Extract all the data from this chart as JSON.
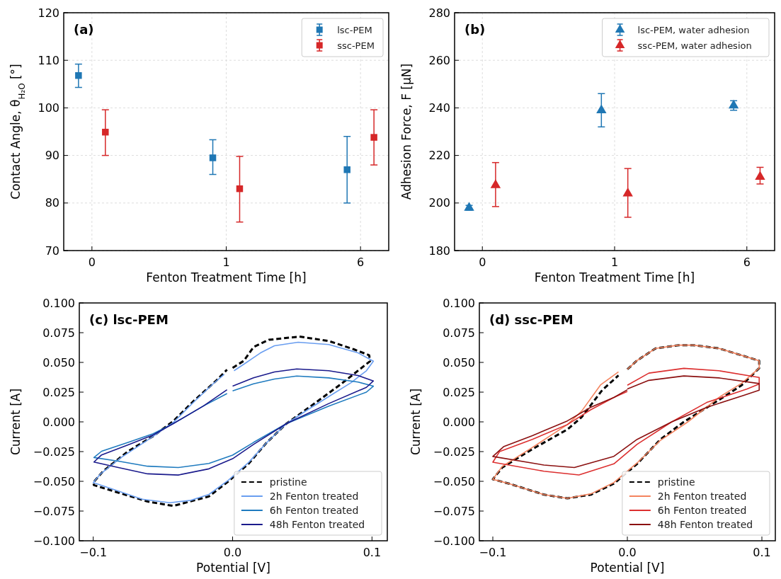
{
  "chart_data": [
    {
      "type": "scatter",
      "title": "(a)",
      "xlabel": "Fenton Treatment Time [h]",
      "ylabel": "Contact Angle, θ$_{H₂O}$ [°]",
      "categories": [
        "0",
        "1",
        "6"
      ],
      "ylim": [
        70,
        120
      ],
      "yticks": [
        70,
        80,
        90,
        100,
        110,
        120
      ],
      "grid": true,
      "legend": "top right",
      "marker": "square",
      "series": [
        {
          "name": "lsc-PEM",
          "color": "#1f77b4",
          "values": [
            106.8,
            89.5,
            87
          ],
          "errors": [
            [
              104.3,
              109.2
            ],
            [
              86,
              93.3
            ],
            [
              80,
              94
            ]
          ]
        },
        {
          "name": "ssc-PEM",
          "color": "#d62728",
          "values": [
            94.9,
            83,
            93.8
          ],
          "errors": [
            [
              90,
              99.6
            ],
            [
              76,
              89.8
            ],
            [
              88,
              99.6
            ]
          ]
        }
      ]
    },
    {
      "type": "scatter",
      "title": "(b)",
      "xlabel": "Fenton Treatment Time [h]",
      "ylabel": "Adhesion Force, F [μN]",
      "categories": [
        "0",
        "1",
        "6"
      ],
      "ylim": [
        180,
        280
      ],
      "yticks": [
        180,
        200,
        220,
        240,
        260,
        280
      ],
      "grid": true,
      "legend": "top right",
      "marker": "triangle",
      "series": [
        {
          "name": "lsc-PEM, water adhesion",
          "color": "#1f77b4",
          "values": [
            198,
            239,
            241
          ],
          "errors": [
            [
              197,
              199
            ],
            [
              232,
              246
            ],
            [
              239,
              243
            ]
          ]
        },
        {
          "name": "ssc-PEM, water adhesion",
          "color": "#d62728",
          "values": [
            207.5,
            204,
            211
          ],
          "errors": [
            [
              198.5,
              217
            ],
            [
              194,
              214.5
            ],
            [
              208,
              215
            ]
          ]
        }
      ]
    },
    {
      "type": "line",
      "title": "(c) lsc-PEM",
      "xlabel": "Potential [V]",
      "ylabel": "Current [A]",
      "xlim": [
        -0.11,
        0.111
      ],
      "xticks": [
        {
          "value": -0.1,
          "label": "−0.1"
        },
        {
          "value": 0,
          "label": "0.0"
        },
        {
          "value": 0.1,
          "label": "0.1"
        }
      ],
      "ylim": [
        -0.1,
        0.1
      ],
      "yticks": [
        {
          "value": -0.1,
          "label": "−0.100"
        },
        {
          "value": -0.075,
          "label": "−0.075"
        },
        {
          "value": -0.05,
          "label": "−0.050"
        },
        {
          "value": -0.025,
          "label": "−0.025"
        },
        {
          "value": 0,
          "label": "0.000"
        },
        {
          "value": 0.025,
          "label": "0.025"
        },
        {
          "value": 0.05,
          "label": "0.050"
        },
        {
          "value": 0.075,
          "label": "0.075"
        },
        {
          "value": 0.1,
          "label": "0.100"
        }
      ],
      "legend": "bottom right",
      "series": [
        {
          "name": "pristine",
          "color": "#000000",
          "line_style": "dashed",
          "x": [
            0,
            0.008,
            0.015,
            0.026,
            0.048,
            0.069,
            0.087,
            0.098,
            0.0986,
            0.091,
            0.078,
            0.06,
            0.0386,
            0.024,
            0.0116,
            -0.003,
            -0.017,
            -0.0426,
            -0.061,
            -0.082,
            -0.0995,
            -0.1,
            -0.093,
            -0.075,
            -0.057,
            -0.0426,
            -0.028,
            -0.012,
            -0.004
          ],
          "values": [
            0.0454,
            0.0513,
            0.0629,
            0.069,
            0.0717,
            0.068,
            0.061,
            0.056,
            0.051,
            0.044,
            0.032,
            0.0165,
            -0.0015,
            -0.018,
            -0.035,
            -0.05,
            -0.0627,
            -0.0707,
            -0.067,
            -0.0595,
            -0.0532,
            -0.051,
            -0.0416,
            -0.0247,
            -0.012,
            0.0006,
            0.0175,
            0.0344,
            0.0439
          ]
        },
        {
          "name": "2h Fenton treated",
          "color": "#6a9ef0",
          "line_style": "solid",
          "x": [
            0.001,
            0.01,
            0.02,
            0.03,
            0.047,
            0.069,
            0.09,
            0.101,
            0.096,
            0.085,
            0.07,
            0.055,
            0.0386,
            0.024,
            0.0116,
            -0.003,
            -0.017,
            -0.03,
            -0.045,
            -0.065,
            -0.085,
            -0.1,
            -0.095,
            -0.08,
            -0.06,
            -0.0426,
            -0.028,
            -0.014,
            -0.006
          ],
          "values": [
            0.043,
            0.05,
            0.058,
            0.064,
            0.067,
            0.065,
            0.058,
            0.051,
            0.043,
            0.033,
            0.022,
            0.011,
            -0.0015,
            -0.018,
            -0.034,
            -0.049,
            -0.061,
            -0.066,
            -0.068,
            -0.065,
            -0.057,
            -0.051,
            -0.044,
            -0.03,
            -0.0145,
            -0.0005,
            0.0165,
            0.032,
            0.04
          ]
        },
        {
          "name": "6h Fenton treated",
          "color": "#1f7bbf",
          "line_style": "solid",
          "x": [
            0,
            0.015,
            0.03,
            0.046,
            0.069,
            0.09,
            0.101,
            0.096,
            0.069,
            0.0386,
            0.015,
            0,
            -0.017,
            -0.039,
            -0.061,
            -0.082,
            -0.0995,
            -0.094,
            -0.075,
            -0.057,
            -0.0426,
            -0.021,
            -0.004
          ],
          "values": [
            0.026,
            0.032,
            0.036,
            0.0385,
            0.037,
            0.0335,
            0.03,
            0.025,
            0.0133,
            -0.0015,
            -0.0173,
            -0.028,
            -0.035,
            -0.0384,
            -0.0373,
            -0.033,
            -0.03,
            -0.0247,
            -0.0173,
            -0.01,
            -0.0015,
            0.0133,
            0.0238
          ]
        },
        {
          "name": "48h Fenton treated",
          "color": "#1a1a8c",
          "line_style": "solid",
          "x": [
            0,
            0.015,
            0.03,
            0.046,
            0.069,
            0.09,
            0.101,
            0.096,
            0.069,
            0.0386,
            0.015,
            0,
            -0.017,
            -0.039,
            -0.061,
            -0.082,
            -0.0995,
            -0.094,
            -0.075,
            -0.057,
            -0.0426,
            -0.021,
            -0.004
          ],
          "values": [
            0.03,
            0.037,
            0.042,
            0.0445,
            0.043,
            0.039,
            0.0344,
            0.029,
            0.0154,
            -0.0015,
            -0.019,
            -0.031,
            -0.0395,
            -0.0447,
            -0.0437,
            -0.0384,
            -0.0338,
            -0.0278,
            -0.0194,
            -0.011,
            -0.0015,
            0.0133,
            0.027
          ]
        }
      ]
    },
    {
      "type": "line",
      "title": "(d) ssc-PEM",
      "xlabel": "Potential [V]",
      "ylabel": "Current [A]",
      "xlim": [
        -0.11,
        0.11
      ],
      "xticks": [
        {
          "value": -0.1,
          "label": "−0.1"
        },
        {
          "value": 0,
          "label": "0.0"
        },
        {
          "value": 0.1,
          "label": "0.1"
        }
      ],
      "ylim": [
        -0.1,
        0.1
      ],
      "yticks": [
        {
          "value": -0.1,
          "label": "−0.100"
        },
        {
          "value": -0.075,
          "label": "−0.075"
        },
        {
          "value": -0.05,
          "label": "−0.050"
        },
        {
          "value": -0.025,
          "label": "−0.025"
        },
        {
          "value": 0,
          "label": "0.000"
        },
        {
          "value": 0.025,
          "label": "0.025"
        },
        {
          "value": 0.05,
          "label": "0.050"
        },
        {
          "value": 0.075,
          "label": "0.075"
        },
        {
          "value": 0.1,
          "label": "0.100"
        }
      ],
      "legend": "bottom right",
      "series": [
        {
          "name": "pristine",
          "color": "#000000",
          "line_style": "dashed",
          "x": [
            0,
            0.007,
            0.021,
            0.038,
            0.049,
            0.068,
            0.092,
            0.098,
            0.098,
            0.085,
            0.068,
            0.042,
            0.0246,
            0.0073,
            -0.01,
            -0.027,
            -0.0446,
            -0.062,
            -0.088,
            -0.1,
            -0.093,
            -0.0706,
            -0.0446,
            -0.034,
            -0.0187,
            -0.0066
          ],
          "values": [
            0.0442,
            0.0514,
            0.0618,
            0.0645,
            0.0645,
            0.0618,
            0.0535,
            0.0514,
            0.0452,
            0.0308,
            0.0184,
            0,
            -0.0147,
            -0.0353,
            -0.0519,
            -0.0612,
            -0.0643,
            -0.0612,
            -0.0519,
            -0.0483,
            -0.0384,
            -0.0229,
            -0.0064,
            0.0039,
            0.0267,
            0.039
          ]
        },
        {
          "name": "2h Fenton treated",
          "color": "#f4845f",
          "line_style": "solid",
          "x": [
            0,
            0.007,
            0.021,
            0.038,
            0.049,
            0.068,
            0.092,
            0.098,
            0.098,
            0.085,
            0.068,
            0.045,
            0.0246,
            0.0073,
            -0.01,
            -0.027,
            -0.0446,
            -0.062,
            -0.088,
            -0.1,
            -0.093,
            -0.0706,
            -0.0446,
            -0.034,
            -0.02,
            -0.0066
          ],
          "values": [
            0.0442,
            0.0514,
            0.0618,
            0.0645,
            0.0645,
            0.0618,
            0.0535,
            0.0514,
            0.0452,
            0.0325,
            0.0205,
            0,
            -0.0155,
            -0.0345,
            -0.051,
            -0.0605,
            -0.0643,
            -0.0612,
            -0.0519,
            -0.0483,
            -0.0375,
            -0.0215,
            -0.0023,
            0.009,
            0.031,
            0.0421
          ]
        },
        {
          "name": "6h Fenton treated",
          "color": "#dc2f2f",
          "line_style": "solid",
          "x": [
            0,
            0.016,
            0.042,
            0.068,
            0.098,
            0.098,
            0.089,
            0.059,
            0.033,
            0.0073,
            -0.01,
            -0.036,
            -0.062,
            -0.1,
            -0.095,
            -0.0706,
            -0.0446,
            -0.0273,
            -0.01,
            0
          ],
          "values": [
            0.0308,
            0.041,
            0.045,
            0.043,
            0.0374,
            0.0318,
            0.0277,
            0.0163,
            0,
            -0.0188,
            -0.0353,
            -0.0446,
            -0.0415,
            -0.0339,
            -0.025,
            -0.0147,
            -0.0023,
            0.0101,
            0.0205,
            0.0256
          ]
        },
        {
          "name": "48h Fenton treated",
          "color": "#8b1010",
          "line_style": "solid",
          "x": [
            0,
            0.016,
            0.042,
            0.068,
            0.098,
            0.098,
            0.087,
            0.059,
            0.033,
            0.0073,
            -0.01,
            -0.0394,
            -0.062,
            -0.1,
            -0.092,
            -0.0706,
            -0.0446,
            -0.0273,
            -0.01,
            0
          ],
          "values": [
            0.0277,
            0.0349,
            0.0386,
            0.037,
            0.0322,
            0.0267,
            0.0225,
            0.0122,
            0,
            -0.0147,
            -0.029,
            -0.0384,
            -0.0363,
            -0.0291,
            -0.0209,
            -0.0116,
            0.0008,
            0.0122,
            0.0205,
            0.027
          ]
        }
      ]
    }
  ]
}
